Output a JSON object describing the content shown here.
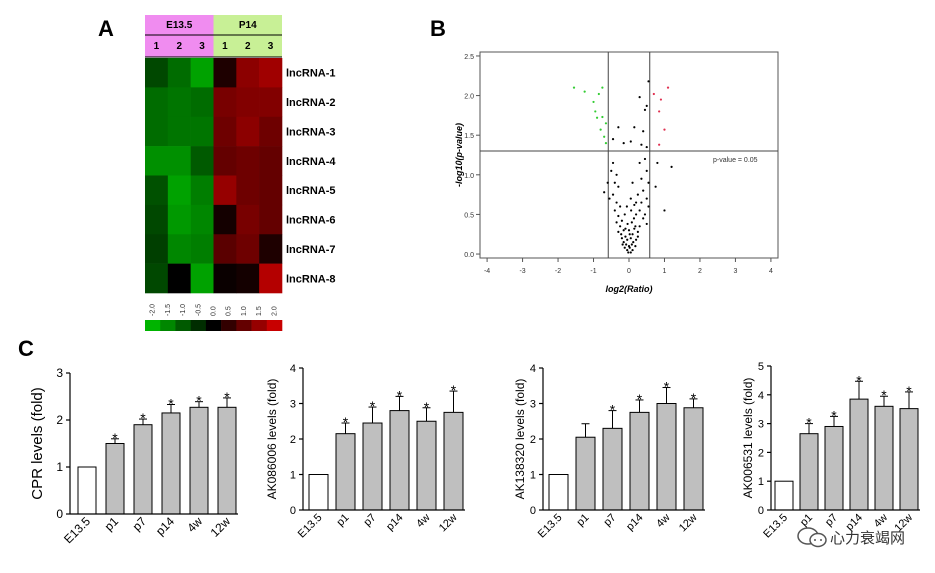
{
  "panels": {
    "a": "A",
    "b": "B",
    "c": "C"
  },
  "colors": {
    "green": "#00b400",
    "black": "#000000",
    "red": "#c80000",
    "bar_fill": "#bfbfbf",
    "e13_fill": "#ffffff",
    "e13_band": "#f08cf0",
    "p14_band": "#c8f096"
  },
  "watermark": "心力衰竭网",
  "chart_data": [
    {
      "type": "heatmap",
      "groups": [
        {
          "label": "E13.5",
          "samples": [
            "1",
            "2",
            "3"
          ]
        },
        {
          "label": "P14",
          "samples": [
            "1",
            "2",
            "3"
          ]
        }
      ],
      "rows": [
        "lncRNA-1",
        "lncRNA-2",
        "lncRNA-3",
        "lncRNA-4",
        "lncRNA-5",
        "lncRNA-6",
        "lncRNA-7",
        "lncRNA-8"
      ],
      "values": [
        [
          -0.8,
          -1.2,
          -1.8,
          0.3,
          1.4,
          1.6
        ],
        [
          -1.2,
          -1.3,
          -1.2,
          1.2,
          1.3,
          1.3
        ],
        [
          -1.2,
          -1.3,
          -1.3,
          1.1,
          1.4,
          1.1
        ],
        [
          -1.6,
          -1.6,
          -1.0,
          1.0,
          1.1,
          1.0
        ],
        [
          -0.9,
          -1.8,
          -1.4,
          1.5,
          1.1,
          1.0
        ],
        [
          -0.8,
          -1.7,
          -1.5,
          0.2,
          1.2,
          1.0
        ],
        [
          -0.7,
          -1.5,
          -1.4,
          0.9,
          1.1,
          0.3
        ],
        [
          -0.8,
          0.0,
          -1.8,
          0.1,
          0.2,
          1.8
        ]
      ],
      "colorbar_ticks": [
        "-2.0",
        "-1.5",
        "-1.0",
        "-0.5",
        "0.0",
        "0.5",
        "1.0",
        "1.5",
        "2.0"
      ],
      "range": [
        -2.0,
        2.0
      ]
    },
    {
      "type": "scatter",
      "xlabel": "log2(Ratio)",
      "ylabel": "-log10(p-value)",
      "xlim": [
        -4.2,
        4.2
      ],
      "ylim": [
        -0.05,
        2.55
      ],
      "xticks": [
        "-4",
        "-3",
        "-2",
        "-1",
        "0",
        "1",
        "2",
        "3",
        "4"
      ],
      "yticks": [
        "0.0",
        "0.5",
        "1.0",
        "1.5",
        "2.0",
        "2.5"
      ],
      "vlines": [
        -0.585,
        0.585
      ],
      "hline": 1.3,
      "threshold_label": "p-value = 0.05",
      "series": [
        {
          "color": "green",
          "points": [
            [
              -1.55,
              2.1
            ],
            [
              -1.25,
              2.05
            ],
            [
              -0.75,
              2.1
            ],
            [
              -0.85,
              2.02
            ],
            [
              -1.0,
              1.92
            ],
            [
              -0.95,
              1.8
            ],
            [
              -0.75,
              1.73
            ],
            [
              -0.9,
              1.72
            ],
            [
              -0.65,
              1.65
            ],
            [
              -0.8,
              1.57
            ],
            [
              -0.7,
              1.48
            ],
            [
              -0.65,
              1.4
            ]
          ]
        },
        {
          "color": "red",
          "points": [
            [
              1.1,
              2.1
            ],
            [
              0.7,
              2.02
            ],
            [
              0.9,
              1.95
            ],
            [
              0.85,
              1.8
            ],
            [
              1.0,
              1.57
            ],
            [
              0.85,
              1.38
            ]
          ]
        },
        {
          "color": "black",
          "points": [
            [
              0.55,
              2.18
            ],
            [
              0.3,
              1.98
            ],
            [
              0.5,
              1.87
            ],
            [
              0.45,
              1.82
            ],
            [
              -0.3,
              1.6
            ],
            [
              0.15,
              1.6
            ],
            [
              0.4,
              1.55
            ],
            [
              -0.45,
              1.45
            ],
            [
              0.05,
              1.42
            ],
            [
              0.35,
              1.38
            ],
            [
              -0.15,
              1.4
            ],
            [
              0.5,
              1.35
            ],
            [
              1.2,
              1.1
            ],
            [
              1.0,
              0.55
            ],
            [
              0.8,
              1.15
            ],
            [
              0.75,
              0.85
            ],
            [
              -0.7,
              0.78
            ],
            [
              -0.6,
              0.9
            ],
            [
              -0.5,
              1.05
            ],
            [
              -0.55,
              0.7
            ],
            [
              0.45,
              1.2
            ],
            [
              0.3,
              1.15
            ],
            [
              0.5,
              1.05
            ],
            [
              0.35,
              0.95
            ],
            [
              0.55,
              0.9
            ],
            [
              0.4,
              0.8
            ],
            [
              0.25,
              0.75
            ],
            [
              0.5,
              0.7
            ],
            [
              0.35,
              0.65
            ],
            [
              0.55,
              0.6
            ],
            [
              0.45,
              0.5
            ],
            [
              0.3,
              0.55
            ],
            [
              0.4,
              0.45
            ],
            [
              0.2,
              0.5
            ],
            [
              0.5,
              0.38
            ],
            [
              0.3,
              0.35
            ],
            [
              0.25,
              0.28
            ],
            [
              0.15,
              0.32
            ],
            [
              -0.45,
              1.15
            ],
            [
              -0.35,
              1.0
            ],
            [
              -0.4,
              0.9
            ],
            [
              -0.3,
              0.85
            ],
            [
              -0.45,
              0.75
            ],
            [
              -0.35,
              0.65
            ],
            [
              -0.25,
              0.6
            ],
            [
              -0.4,
              0.55
            ],
            [
              -0.3,
              0.48
            ],
            [
              -0.2,
              0.42
            ],
            [
              -0.35,
              0.4
            ],
            [
              -0.25,
              0.35
            ],
            [
              -0.15,
              0.3
            ],
            [
              -0.3,
              0.28
            ],
            [
              0.1,
              0.9
            ],
            [
              0.05,
              0.7
            ],
            [
              0.15,
              0.62
            ],
            [
              0.2,
              0.65
            ],
            [
              0.25,
              0.22
            ],
            [
              0.2,
              0.18
            ],
            [
              0.1,
              0.25
            ],
            [
              0.05,
              0.2
            ],
            [
              0.12,
              0.15
            ],
            [
              0.18,
              0.1
            ],
            [
              0.08,
              0.12
            ],
            [
              0.02,
              0.08
            ],
            [
              0.1,
              0.05
            ],
            [
              0.05,
              0.02
            ],
            [
              0.0,
              0.1
            ],
            [
              -0.05,
              0.18
            ],
            [
              -0.1,
              0.22
            ],
            [
              -0.15,
              0.15
            ],
            [
              -0.2,
              0.2
            ],
            [
              -0.08,
              0.12
            ],
            [
              -0.12,
              0.08
            ],
            [
              -0.05,
              0.05
            ],
            [
              -0.02,
              0.02
            ],
            [
              -0.18,
              0.12
            ],
            [
              -0.1,
              0.32
            ],
            [
              -0.22,
              0.25
            ],
            [
              0.0,
              0.3
            ],
            [
              0.02,
              0.25
            ],
            [
              -0.04,
              0.38
            ],
            [
              0.08,
              0.4
            ],
            [
              0.14,
              0.45
            ],
            [
              -0.12,
              0.5
            ],
            [
              0.18,
              0.35
            ],
            [
              0.06,
              0.55
            ],
            [
              -0.06,
              0.6
            ]
          ]
        }
      ]
    },
    {
      "type": "bar",
      "ylabel": "CPR levels (fold)",
      "categories": [
        "E13.5",
        "p1",
        "p7",
        "p14",
        "4w",
        "12w"
      ],
      "values": [
        1.0,
        1.5,
        1.9,
        2.15,
        2.27,
        2.27
      ],
      "errors": [
        0,
        0.1,
        0.12,
        0.18,
        0.12,
        0.2
      ],
      "significant": [
        false,
        true,
        true,
        true,
        true,
        true
      ],
      "ylim": [
        0,
        3
      ],
      "yticks": [
        "0",
        "1",
        "2",
        "3"
      ]
    },
    {
      "type": "bar",
      "ylabel": "AK086006 levels (fold)",
      "categories": [
        "E13.5",
        "p1",
        "p7",
        "p14",
        "4w",
        "12w"
      ],
      "values": [
        1.0,
        2.15,
        2.45,
        2.8,
        2.5,
        2.75
      ],
      "errors": [
        0,
        0.3,
        0.45,
        0.4,
        0.38,
        0.6
      ],
      "significant": [
        false,
        true,
        true,
        true,
        true,
        true
      ],
      "ylim": [
        0,
        4
      ],
      "yticks": [
        "0",
        "1",
        "2",
        "3",
        "4"
      ]
    },
    {
      "type": "bar",
      "ylabel": "AK138320 levels (fold)",
      "categories": [
        "E13.5",
        "p1",
        "p7",
        "p14",
        "4w",
        "12w"
      ],
      "values": [
        1.0,
        2.05,
        2.3,
        2.75,
        3.0,
        2.88
      ],
      "errors": [
        0,
        0.38,
        0.5,
        0.35,
        0.45,
        0.25
      ],
      "significant": [
        false,
        false,
        true,
        true,
        true,
        true
      ],
      "ylim": [
        0,
        4
      ],
      "yticks": [
        "0",
        "1",
        "2",
        "3",
        "4"
      ]
    },
    {
      "type": "bar",
      "ylabel": "AK006531 levels (fold)",
      "categories": [
        "E13.5",
        "p1",
        "p7",
        "p14",
        "4w",
        "12w"
      ],
      "values": [
        1.0,
        2.65,
        2.9,
        3.85,
        3.6,
        3.52
      ],
      "errors": [
        0,
        0.35,
        0.35,
        0.62,
        0.35,
        0.58
      ],
      "significant": [
        false,
        true,
        true,
        true,
        true,
        true
      ],
      "ylim": [
        0,
        5
      ],
      "yticks": [
        "0",
        "1",
        "2",
        "3",
        "4",
        "5"
      ]
    }
  ]
}
